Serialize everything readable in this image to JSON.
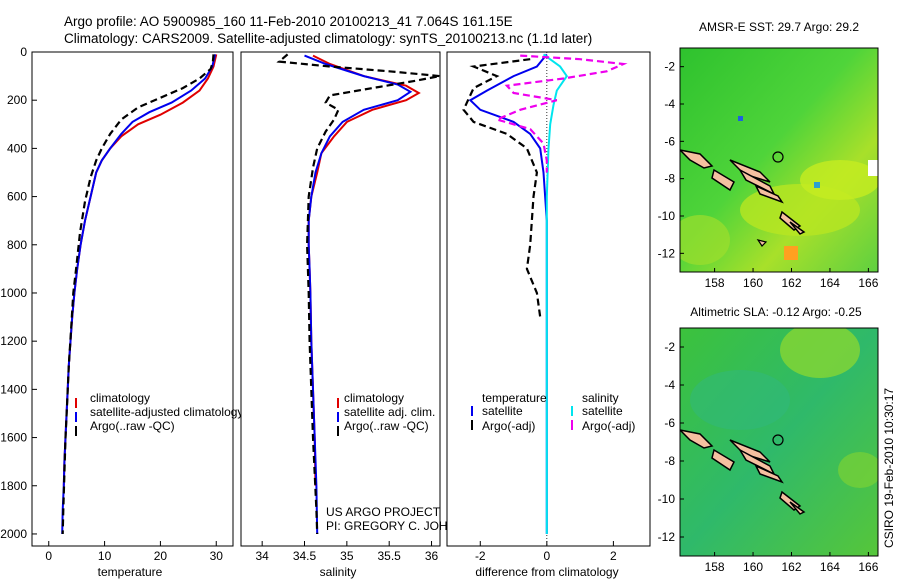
{
  "header": {
    "line1": "Argo profile: AO 5900985_160 11-Feb-2010 20100213_41 7.064S 161.15E",
    "line2": "Climatology: CARS2009. Satellite-adjusted climatology: synTS_20100213.nc (1.1d later)"
  },
  "credits": {
    "line1": "US ARGO PROJECT",
    "line2": "PI: GREGORY C. JOHNSON"
  },
  "stamp": "CSIRO 19-Feb-2010 10:30:17",
  "colors": {
    "climatology": "#e00000",
    "satellite": "#0000ee",
    "argo": "#000000",
    "sal_satellite": "#00e5ee",
    "sal_argo": "#ee00ee"
  },
  "chart_data": [
    {
      "type": "line",
      "xlabel": "temperature",
      "ylabel": "",
      "xlim": [
        -3,
        33
      ],
      "ylim": [
        2050,
        0
      ],
      "y_inverted": true,
      "xticks": [
        0,
        10,
        20,
        30
      ],
      "yticks": [
        0,
        200,
        400,
        600,
        800,
        1000,
        1200,
        1400,
        1600,
        1800,
        2000
      ],
      "legend": "lower-middle",
      "series": [
        {
          "name": "climatology",
          "color": "#e00000",
          "style": "solid",
          "points": [
            [
              30,
              10
            ],
            [
              29.5,
              60
            ],
            [
              28.5,
              110
            ],
            [
              27,
              160
            ],
            [
              24,
              210
            ],
            [
              20,
              260
            ],
            [
              16,
              300
            ],
            [
              13,
              350
            ],
            [
              11,
              400
            ],
            [
              9.5,
              450
            ],
            [
              8.5,
              500
            ],
            [
              7.5,
              600
            ],
            [
              6.5,
              700
            ],
            [
              5.7,
              800
            ],
            [
              5.1,
              900
            ],
            [
              4.6,
              1000
            ],
            [
              4.2,
              1100
            ],
            [
              3.9,
              1200
            ],
            [
              3.6,
              1300
            ],
            [
              3.4,
              1400
            ],
            [
              3.2,
              1500
            ],
            [
              3.0,
              1600
            ],
            [
              2.8,
              1700
            ],
            [
              2.7,
              1800
            ]
          ]
        },
        {
          "name": "satellite-adjusted climatology",
          "color": "#0000ee",
          "style": "solid",
          "points": [
            [
              29.8,
              10
            ],
            [
              29.3,
              60
            ],
            [
              28,
              110
            ],
            [
              25.5,
              160
            ],
            [
              22,
              210
            ],
            [
              18,
              250
            ],
            [
              15,
              290
            ],
            [
              13,
              340
            ],
            [
              11,
              400
            ],
            [
              9.5,
              450
            ],
            [
              8.5,
              500
            ],
            [
              7.5,
              600
            ],
            [
              6.5,
              700
            ],
            [
              5.7,
              800
            ],
            [
              5.1,
              900
            ],
            [
              4.6,
              1000
            ],
            [
              4.2,
              1100
            ],
            [
              3.9,
              1200
            ],
            [
              3.6,
              1300
            ],
            [
              3.4,
              1400
            ],
            [
              3.2,
              1500
            ],
            [
              3.0,
              1600
            ],
            [
              2.8,
              1700
            ],
            [
              2.7,
              1800
            ],
            [
              2.5,
              1900
            ],
            [
              2.4,
              2000
            ]
          ]
        },
        {
          "name": "Argo(..raw -QC)",
          "color": "#000000",
          "style": "dashed",
          "points": [
            [
              29.5,
              10
            ],
            [
              29.4,
              40
            ],
            [
              29,
              70
            ],
            [
              27,
              110
            ],
            [
              24,
              150
            ],
            [
              20,
              190
            ],
            [
              16,
              230
            ],
            [
              13,
              280
            ],
            [
              11,
              340
            ],
            [
              9.5,
              400
            ],
            [
              8.5,
              450
            ],
            [
              7.5,
              520
            ],
            [
              6.5,
              620
            ],
            [
              5.6,
              750
            ],
            [
              4.9,
              900
            ],
            [
              4.4,
              1000
            ],
            [
              4.0,
              1150
            ],
            [
              3.6,
              1300
            ],
            [
              3.3,
              1450
            ],
            [
              3.0,
              1600
            ],
            [
              2.8,
              1750
            ],
            [
              2.6,
              1900
            ],
            [
              2.5,
              2000
            ]
          ]
        }
      ]
    },
    {
      "type": "line",
      "xlabel": "salinity",
      "ylabel": "",
      "xlim": [
        33.75,
        36.1
      ],
      "ylim": [
        2050,
        0
      ],
      "y_inverted": true,
      "xticks": [
        34,
        34.5,
        35,
        35.5,
        36
      ],
      "legend": "lower-middle",
      "series": [
        {
          "name": "climatology",
          "color": "#e00000",
          "style": "solid",
          "points": [
            [
              34.6,
              15
            ],
            [
              34.8,
              50
            ],
            [
              35.2,
              100
            ],
            [
              35.7,
              140
            ],
            [
              35.85,
              170
            ],
            [
              35.7,
              200
            ],
            [
              35.3,
              240
            ],
            [
              35.0,
              290
            ],
            [
              34.85,
              350
            ],
            [
              34.7,
              420
            ],
            [
              34.65,
              500
            ],
            [
              34.58,
              600
            ],
            [
              34.55,
              700
            ],
            [
              34.55,
              800
            ],
            [
              34.56,
              900
            ],
            [
              34.57,
              1000
            ],
            [
              34.58,
              1200
            ],
            [
              34.6,
              1400
            ],
            [
              34.62,
              1600
            ],
            [
              34.63,
              1800
            ]
          ]
        },
        {
          "name": "satellite adj. clim.",
          "color": "#0000ee",
          "style": "solid",
          "points": [
            [
              34.5,
              15
            ],
            [
              34.75,
              50
            ],
            [
              35.2,
              100
            ],
            [
              35.6,
              135
            ],
            [
              35.75,
              165
            ],
            [
              35.6,
              200
            ],
            [
              35.2,
              240
            ],
            [
              34.95,
              290
            ],
            [
              34.8,
              350
            ],
            [
              34.7,
              420
            ],
            [
              34.63,
              500
            ],
            [
              34.58,
              600
            ],
            [
              34.55,
              700
            ],
            [
              34.55,
              800
            ],
            [
              34.56,
              900
            ],
            [
              34.57,
              1000
            ],
            [
              34.58,
              1200
            ],
            [
              34.6,
              1400
            ],
            [
              34.62,
              1600
            ],
            [
              34.64,
              1800
            ],
            [
              34.65,
              2000
            ]
          ]
        },
        {
          "name": "Argo(..raw -QC)",
          "color": "#000000",
          "style": "dashed",
          "points": [
            [
              34.3,
              10
            ],
            [
              34.2,
              40
            ],
            [
              34.8,
              60
            ],
            [
              35.5,
              80
            ],
            [
              36.1,
              100
            ],
            [
              35.8,
              120
            ],
            [
              35.3,
              150
            ],
            [
              34.8,
              180
            ],
            [
              34.75,
              210
            ],
            [
              34.9,
              240
            ],
            [
              34.85,
              280
            ],
            [
              34.75,
              330
            ],
            [
              34.65,
              400
            ],
            [
              34.6,
              480
            ],
            [
              34.55,
              600
            ],
            [
              34.53,
              800
            ],
            [
              34.55,
              1000
            ],
            [
              34.56,
              1200
            ],
            [
              34.58,
              1400
            ],
            [
              34.6,
              1600
            ],
            [
              34.62,
              1750
            ],
            [
              34.64,
              1900
            ],
            [
              34.65,
              2000
            ]
          ]
        }
      ]
    },
    {
      "type": "line",
      "xlabel": "difference from climatology",
      "ylabel": "",
      "xlim": [
        -3,
        3.1
      ],
      "ylim": [
        2050,
        0
      ],
      "y_inverted": true,
      "xticks": [
        -2,
        0,
        2
      ],
      "legend_title_left": "temperature",
      "legend_title_right": "salinity",
      "legend": "lower-middle",
      "series": [
        {
          "name": "satellite",
          "group": "temperature",
          "color": "#0000ee",
          "style": "solid",
          "points": [
            [
              0,
              10
            ],
            [
              -0.3,
              60
            ],
            [
              -1.0,
              100
            ],
            [
              -1.8,
              160
            ],
            [
              -2.3,
              200
            ],
            [
              -2.0,
              240
            ],
            [
              -1.0,
              290
            ],
            [
              -0.5,
              340
            ],
            [
              -0.2,
              400
            ],
            [
              -0.1,
              500
            ],
            [
              0,
              700
            ],
            [
              0,
              1000
            ],
            [
              0,
              1500
            ],
            [
              0,
              1700
            ],
            [
              0,
              2000
            ]
          ]
        },
        {
          "name": "Argo(-adj)",
          "group": "temperature",
          "color": "#000000",
          "style": "dashed",
          "points": [
            [
              -0.5,
              30
            ],
            [
              -2.2,
              60
            ],
            [
              -1.5,
              100
            ],
            [
              -2.2,
              150
            ],
            [
              -2.5,
              240
            ],
            [
              -2.2,
              290
            ],
            [
              -1.2,
              340
            ],
            [
              -0.6,
              400
            ],
            [
              -0.3,
              500
            ],
            [
              -0.4,
              600
            ],
            [
              -0.5,
              800
            ],
            [
              -0.6,
              900
            ],
            [
              -0.3,
              1000
            ],
            [
              -0.2,
              1100
            ]
          ]
        },
        {
          "name": "satellite",
          "group": "salinity",
          "color": "#00e5ee",
          "style": "solid",
          "points": [
            [
              -0.1,
              10
            ],
            [
              0.4,
              60
            ],
            [
              0.6,
              100
            ],
            [
              0.3,
              160
            ],
            [
              0.2,
              220
            ],
            [
              0.1,
              300
            ],
            [
              0.05,
              400
            ],
            [
              0,
              600
            ],
            [
              0,
              1000
            ],
            [
              0,
              1500
            ],
            [
              0,
              2000
            ]
          ]
        },
        {
          "name": "Argo(-adj)",
          "group": "salinity",
          "color": "#ee00ee",
          "style": "dashed",
          "points": [
            [
              -0.8,
              15
            ],
            [
              1.0,
              30
            ],
            [
              2.3,
              50
            ],
            [
              1.8,
              80
            ],
            [
              0.5,
              110
            ],
            [
              -1.2,
              140
            ],
            [
              -1.0,
              170
            ],
            [
              0.3,
              200
            ],
            [
              -0.8,
              240
            ],
            [
              -1.5,
              280
            ],
            [
              -0.5,
              320
            ],
            [
              -0.1,
              380
            ],
            [
              0,
              450
            ],
            [
              0,
              500
            ]
          ]
        }
      ]
    },
    {
      "type": "heatmap",
      "title": "AMSR-E SST: 29.7 Argo: 29.2",
      "xticks": [
        158,
        160,
        162,
        164,
        166
      ],
      "yticks": [
        -2,
        -4,
        -6,
        -8,
        -10,
        -12
      ],
      "xlim": [
        156.2,
        166.5
      ],
      "ylim": [
        -13,
        -1
      ],
      "float_position": [
        161.15,
        -7.064
      ]
    },
    {
      "type": "heatmap",
      "title": "Altimetric SLA: -0.12 Argo: -0.25",
      "xticks": [
        158,
        160,
        162,
        164,
        166
      ],
      "yticks": [
        -2,
        -4,
        -6,
        -8,
        -10,
        -12
      ],
      "xlim": [
        156.2,
        166.5
      ],
      "ylim": [
        -13,
        -1
      ],
      "float_position": [
        161.15,
        -7.064
      ]
    }
  ]
}
